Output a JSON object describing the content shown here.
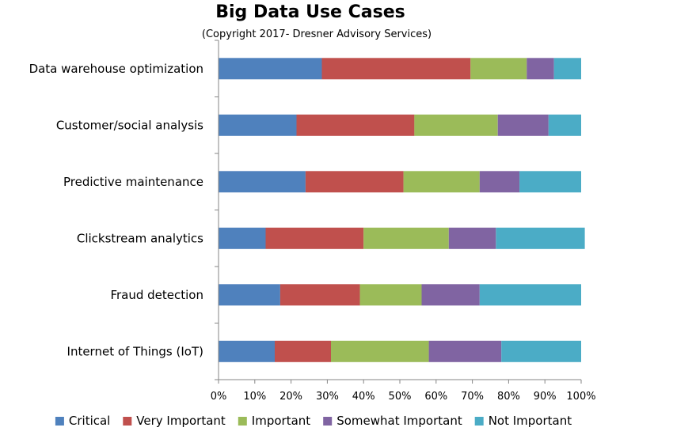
{
  "chart_data": {
    "type": "bar",
    "orientation": "horizontal",
    "stacked": true,
    "title": "Big Data Use Cases",
    "subtitle": "(Copyright 2017- Dresner Advisory Services)",
    "xlabel": "",
    "ylabel": "",
    "xlim": [
      0,
      100
    ],
    "x_tick_labels": [
      "0%",
      "10%",
      "20%",
      "30%",
      "40%",
      "50%",
      "60%",
      "70%",
      "80%",
      "90%",
      "100%"
    ],
    "grid": false,
    "legend_position": "bottom",
    "categories": [
      "Data warehouse optimization",
      "Customer/social analysis",
      "Predictive maintenance",
      "Clickstream analytics",
      "Fraud detection",
      "Internet of Things (IoT)"
    ],
    "series": [
      {
        "name": "Critical",
        "color": "#4f81bd",
        "values": [
          28.5,
          21.5,
          24,
          13,
          17,
          15.5
        ]
      },
      {
        "name": "Very Important",
        "color": "#c0504d",
        "values": [
          41,
          32.5,
          27,
          27,
          22,
          15.5
        ]
      },
      {
        "name": "Important",
        "color": "#9bbb59",
        "values": [
          15.5,
          23,
          21,
          23.5,
          17,
          27
        ]
      },
      {
        "name": "Somewhat Important",
        "color": "#8064a2",
        "values": [
          7.5,
          14,
          11,
          13,
          16,
          20
        ]
      },
      {
        "name": "Not Important",
        "color": "#4bacc6",
        "values": [
          7.5,
          9,
          17,
          24.5,
          28,
          22
        ]
      }
    ]
  }
}
